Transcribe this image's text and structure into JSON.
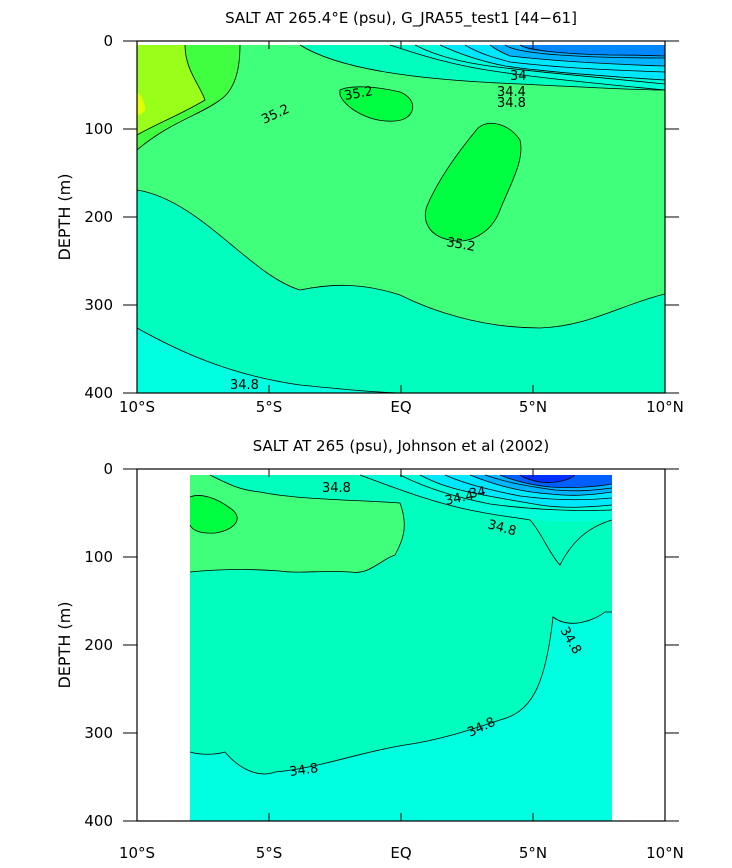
{
  "chart_data": [
    {
      "type": "contour",
      "title": "SALT AT 265.4°E (psu), G_JRA55_test1 [44−61]",
      "xlabel": "",
      "ylabel": "DEPTH (m)",
      "xlim": [
        -10,
        10
      ],
      "ylim": [
        400,
        0
      ],
      "x_ticks": [
        "10°S",
        "5°S",
        "EQ",
        "5°N",
        "10°N"
      ],
      "y_ticks": [
        "0",
        "100",
        "200",
        "300",
        "400"
      ],
      "contour_labels": [
        {
          "text": "34",
          "x": 5.3,
          "y": 40
        },
        {
          "text": "34.4",
          "x": 5.2,
          "y": 60
        },
        {
          "text": "34.8",
          "x": 5.1,
          "y": 73
        },
        {
          "text": "35.2",
          "x": -5.5,
          "y": 95
        },
        {
          "text": "35.2",
          "x": -1.5,
          "y": 62
        },
        {
          "text": "35.2",
          "x": 2.3,
          "y": 235
        },
        {
          "text": "34.8",
          "x": -5.8,
          "y": 388
        }
      ]
    },
    {
      "type": "contour",
      "title": "SALT AT 265 (psu), Johnson et al (2002)",
      "xlabel": "",
      "ylabel": "DEPTH (m)",
      "xlim": [
        -10,
        10
      ],
      "ylim": [
        400,
        0
      ],
      "x_ticks": [
        "10°S",
        "5°S",
        "EQ",
        "5°N",
        "10°N"
      ],
      "y_ticks": [
        "0",
        "100",
        "200",
        "300",
        "400"
      ],
      "contour_labels": [
        {
          "text": "34.8",
          "x": -2.0,
          "y": 18
        },
        {
          "text": "34",
          "x": 3.2,
          "y": 25
        },
        {
          "text": "34.4",
          "x": 2.3,
          "y": 35
        },
        {
          "text": "34.8",
          "x": 3.9,
          "y": 65
        },
        {
          "text": "34.8",
          "x": 6.7,
          "y": 190
        },
        {
          "text": "34.8",
          "x": 3.3,
          "y": 290
        },
        {
          "text": "34.8",
          "x": -3.8,
          "y": 338
        }
      ]
    }
  ]
}
